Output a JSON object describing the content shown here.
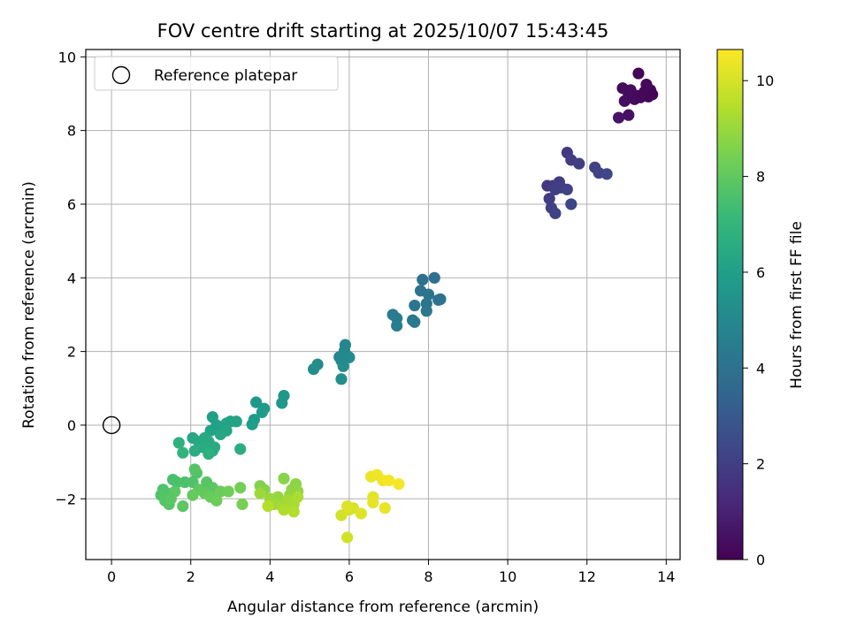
{
  "chart_data": {
    "type": "scatter",
    "title": "FOV centre drift starting at 2025/10/07 15:43:45",
    "xlabel": "Angular distance from reference (arcmin)",
    "ylabel": "Rotation from reference (arcmin)",
    "xlim": [
      -0.65,
      14.35
    ],
    "ylim": [
      -3.65,
      10.2
    ],
    "xticks": [
      0,
      2,
      4,
      6,
      8,
      10,
      12,
      14
    ],
    "xtick_labels": [
      "0",
      "2",
      "4",
      "6",
      "8",
      "10",
      "12",
      "14"
    ],
    "yticks": [
      -2,
      0,
      2,
      4,
      6,
      8,
      10
    ],
    "ytick_labels": [
      "−2",
      "0",
      "2",
      "4",
      "6",
      "8",
      "10"
    ],
    "grid": true,
    "legend": {
      "position": "top-left",
      "entries": [
        "Reference platepar"
      ]
    },
    "reference_point": {
      "x": 0,
      "y": 0,
      "label": "Reference platepar"
    },
    "colorbar": {
      "label": "Hours from first FF file",
      "range": [
        0,
        10.65
      ],
      "ticks": [
        0,
        2,
        4,
        6,
        8,
        10
      ],
      "tick_labels": [
        "0",
        "2",
        "4",
        "6",
        "8",
        "10"
      ],
      "colormap": "viridis",
      "colors": [
        "#440154",
        "#482878",
        "#3e4989",
        "#31688e",
        "#26828e",
        "#1f9e89",
        "#35b779",
        "#6ece58",
        "#b5de2b",
        "#fde725"
      ]
    },
    "points": [
      [
        13.3,
        9.55,
        0.1
      ],
      [
        13.5,
        9.25,
        0.2
      ],
      [
        13.1,
        9.1,
        0.3
      ],
      [
        13.45,
        9.05,
        0.15
      ],
      [
        13.6,
        9.1,
        0.25
      ],
      [
        13.25,
        8.95,
        0.35
      ],
      [
        13.65,
        8.98,
        0.1
      ],
      [
        13.4,
        8.95,
        0.2
      ],
      [
        13.2,
        8.85,
        0.3
      ],
      [
        12.95,
        8.8,
        0.4
      ],
      [
        13.55,
        8.92,
        0.15
      ],
      [
        12.9,
        9.15,
        0.2
      ],
      [
        13.05,
        9.0,
        0.3
      ],
      [
        13.35,
        8.9,
        0.25
      ],
      [
        13.05,
        8.42,
        0.5
      ],
      [
        12.8,
        8.35,
        0.55
      ],
      [
        11.5,
        7.4,
        1.8
      ],
      [
        11.6,
        7.2,
        1.9
      ],
      [
        11.8,
        7.1,
        2.0
      ],
      [
        12.2,
        7.0,
        2.1
      ],
      [
        12.3,
        6.85,
        2.2
      ],
      [
        12.5,
        6.82,
        2.3
      ],
      [
        11.0,
        6.5,
        1.7
      ],
      [
        11.15,
        6.5,
        1.8
      ],
      [
        11.3,
        6.6,
        1.9
      ],
      [
        11.35,
        6.45,
        2.0
      ],
      [
        11.5,
        6.4,
        2.1
      ],
      [
        11.2,
        6.4,
        2.0
      ],
      [
        11.05,
        6.15,
        1.9
      ],
      [
        11.1,
        5.9,
        2.0
      ],
      [
        11.2,
        5.75,
        2.1
      ],
      [
        11.6,
        6.0,
        2.2
      ],
      [
        8.15,
        4.0,
        3.9
      ],
      [
        7.85,
        3.95,
        3.95
      ],
      [
        7.8,
        3.65,
        4.0
      ],
      [
        8.0,
        3.55,
        4.05
      ],
      [
        8.3,
        3.42,
        4.1
      ],
      [
        8.25,
        3.4,
        4.0
      ],
      [
        7.95,
        3.3,
        4.15
      ],
      [
        7.65,
        3.25,
        4.2
      ],
      [
        7.95,
        3.1,
        4.25
      ],
      [
        7.6,
        2.85,
        4.3
      ],
      [
        7.1,
        3.0,
        4.4
      ],
      [
        7.2,
        2.9,
        4.45
      ],
      [
        7.65,
        2.8,
        4.35
      ],
      [
        7.2,
        2.7,
        4.5
      ],
      [
        5.9,
        2.18,
        4.9
      ],
      [
        5.88,
        2.02,
        4.95
      ],
      [
        5.75,
        1.85,
        5.0
      ],
      [
        5.95,
        1.88,
        5.05
      ],
      [
        6.0,
        1.84,
        5.1
      ],
      [
        5.8,
        1.75,
        5.0
      ],
      [
        5.85,
        1.6,
        5.15
      ],
      [
        5.2,
        1.65,
        5.2
      ],
      [
        5.1,
        1.52,
        5.25
      ],
      [
        5.8,
        1.25,
        5.3
      ],
      [
        4.35,
        0.8,
        5.6
      ],
      [
        4.3,
        0.6,
        5.65
      ],
      [
        3.65,
        0.62,
        5.7
      ],
      [
        3.85,
        0.45,
        5.75
      ],
      [
        3.8,
        0.35,
        5.8
      ],
      [
        3.6,
        0.15,
        5.85
      ],
      [
        3.55,
        0.02,
        5.9
      ],
      [
        2.55,
        0.22,
        6.0
      ],
      [
        2.65,
        0.0,
        6.05
      ],
      [
        2.5,
        -0.15,
        6.1
      ],
      [
        2.9,
        0.05,
        6.1
      ],
      [
        3.0,
        0.1,
        6.15
      ],
      [
        3.15,
        0.1,
        6.2
      ],
      [
        2.9,
        -0.15,
        6.25
      ],
      [
        2.75,
        -0.25,
        6.3
      ],
      [
        2.05,
        -0.35,
        6.35
      ],
      [
        2.2,
        -0.45,
        6.4
      ],
      [
        2.35,
        -0.35,
        6.45
      ],
      [
        2.45,
        -0.45,
        6.5
      ],
      [
        2.3,
        -0.6,
        6.55
      ],
      [
        2.1,
        -0.7,
        6.6
      ],
      [
        2.55,
        -0.7,
        6.65
      ],
      [
        2.6,
        -0.6,
        6.5
      ],
      [
        2.45,
        -0.78,
        6.7
      ],
      [
        3.25,
        -0.65,
        6.6
      ],
      [
        1.7,
        -0.48,
        6.8
      ],
      [
        1.8,
        -0.75,
        6.9
      ],
      [
        1.55,
        -1.48,
        7.5
      ],
      [
        1.65,
        -1.55,
        7.55
      ],
      [
        1.85,
        -1.55,
        7.6
      ],
      [
        2.05,
        -1.55,
        7.65
      ],
      [
        2.15,
        -1.3,
        7.7
      ],
      [
        2.1,
        -1.2,
        7.75
      ],
      [
        2.4,
        -1.55,
        7.8
      ],
      [
        2.55,
        -1.7,
        7.85
      ],
      [
        1.3,
        -1.75,
        7.6
      ],
      [
        1.4,
        -1.85,
        7.65
      ],
      [
        1.25,
        -1.9,
        7.7
      ],
      [
        1.35,
        -2.05,
        7.75
      ],
      [
        1.45,
        -2.15,
        7.8
      ],
      [
        1.6,
        -1.8,
        7.9
      ],
      [
        1.5,
        -2.0,
        7.85
      ],
      [
        1.8,
        -2.2,
        7.9
      ],
      [
        2.2,
        -1.75,
        8.0
      ],
      [
        2.35,
        -1.85,
        8.05
      ],
      [
        2.05,
        -1.9,
        8.1
      ],
      [
        2.5,
        -1.95,
        8.15
      ],
      [
        2.75,
        -1.8,
        8.2
      ],
      [
        2.65,
        -2.05,
        8.25
      ],
      [
        2.95,
        -1.8,
        8.3
      ],
      [
        3.25,
        -1.7,
        8.35
      ],
      [
        3.3,
        -2.15,
        8.4
      ],
      [
        3.75,
        -1.65,
        8.6
      ],
      [
        3.85,
        -1.75,
        8.65
      ],
      [
        4.35,
        -1.45,
        8.7
      ],
      [
        4.65,
        -1.6,
        8.75
      ],
      [
        4.55,
        -1.75,
        8.8
      ],
      [
        4.7,
        -1.8,
        8.85
      ],
      [
        4.5,
        -1.9,
        8.9
      ],
      [
        4.2,
        -1.95,
        8.95
      ],
      [
        4.0,
        -2.0,
        9.0
      ],
      [
        3.75,
        -1.85,
        9.05
      ],
      [
        4.1,
        -2.15,
        9.1
      ],
      [
        4.3,
        -2.2,
        9.15
      ],
      [
        4.45,
        -2.05,
        9.2
      ],
      [
        4.6,
        -2.15,
        9.25
      ],
      [
        4.7,
        -1.95,
        9.3
      ],
      [
        4.35,
        -2.3,
        9.35
      ],
      [
        4.6,
        -2.35,
        9.4
      ],
      [
        3.95,
        -2.2,
        9.45
      ],
      [
        5.95,
        -3.05,
        9.9
      ],
      [
        5.8,
        -2.45,
        9.95
      ],
      [
        6.0,
        -2.3,
        10.0
      ],
      [
        6.1,
        -2.25,
        10.05
      ],
      [
        5.95,
        -2.2,
        10.1
      ],
      [
        6.3,
        -2.4,
        10.15
      ],
      [
        6.6,
        -1.95,
        10.2
      ],
      [
        6.6,
        -2.1,
        10.25
      ],
      [
        6.9,
        -2.25,
        10.3
      ],
      [
        6.55,
        -1.4,
        10.35
      ],
      [
        6.7,
        -1.35,
        10.4
      ],
      [
        6.85,
        -1.5,
        10.45
      ],
      [
        7.0,
        -1.5,
        10.5
      ],
      [
        7.25,
        -1.6,
        10.55
      ]
    ]
  }
}
